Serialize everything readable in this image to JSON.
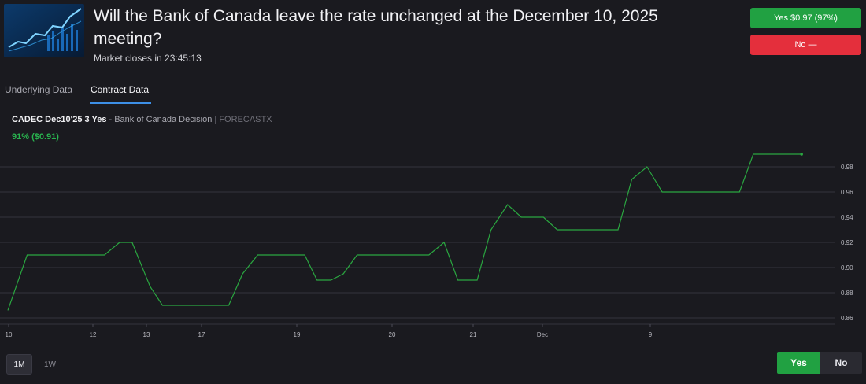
{
  "header": {
    "title": "Will the Bank of Canada leave the rate unchanged at the December 10, 2025 meeting?",
    "closes_text": "Market closes in 23:45:13",
    "yes_button": "Yes $0.97 (97%)",
    "no_button": "No —"
  },
  "tabs": [
    {
      "label": "Underlying Data",
      "active": false
    },
    {
      "label": "Contract Data",
      "active": true
    }
  ],
  "contract": {
    "name": "CADEC Dec10'25 3 Yes",
    "description": " - Bank of Canada Decision ",
    "source": "| FORECASTX",
    "price": "91% ($0.91)"
  },
  "chart_data": {
    "type": "line",
    "title": "",
    "xlabel": "",
    "ylabel": "",
    "ylim": [
      0.855,
      1.0
    ],
    "yticks": [
      "0.98",
      "0.96",
      "0.94",
      "0.92",
      "0.90",
      "0.88",
      "0.86"
    ],
    "xtick_labels": [
      "10",
      "12",
      "13",
      "17",
      "19",
      "20",
      "21",
      "Dec",
      "9"
    ],
    "series": [
      {
        "color": "#2aa640",
        "points": [
          [
            0,
            0.866
          ],
          [
            1.4,
            0.91
          ],
          [
            7.0,
            0.91
          ],
          [
            8.1,
            0.92
          ],
          [
            9.0,
            0.92
          ],
          [
            10.3,
            0.885
          ],
          [
            11.2,
            0.87
          ],
          [
            16.0,
            0.87
          ],
          [
            17.0,
            0.895
          ],
          [
            18.1,
            0.91
          ],
          [
            21.5,
            0.91
          ],
          [
            22.4,
            0.89
          ],
          [
            23.4,
            0.89
          ],
          [
            24.3,
            0.895
          ],
          [
            25.3,
            0.91
          ],
          [
            30.5,
            0.91
          ],
          [
            31.6,
            0.92
          ],
          [
            32.6,
            0.89
          ],
          [
            34.0,
            0.89
          ],
          [
            35.0,
            0.93
          ],
          [
            36.2,
            0.95
          ],
          [
            37.2,
            0.94
          ],
          [
            38.8,
            0.94
          ],
          [
            39.8,
            0.93
          ],
          [
            44.2,
            0.93
          ],
          [
            45.2,
            0.97
          ],
          [
            46.3,
            0.98
          ],
          [
            47.4,
            0.96
          ],
          [
            53.0,
            0.96
          ],
          [
            54.0,
            0.99
          ],
          [
            57.5,
            0.99
          ]
        ]
      }
    ],
    "grid": true
  },
  "controls": {
    "range_1m": "1M",
    "range_1w": "1W",
    "toggle_yes": "Yes",
    "toggle_no": "No"
  }
}
